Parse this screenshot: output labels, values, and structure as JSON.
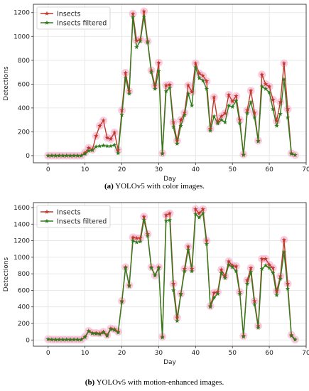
{
  "colors": {
    "insects": "#c0392b",
    "filtered": "#2e7d1a",
    "halo": "#f4a6c6"
  },
  "chart_data": [
    {
      "type": "line",
      "caption_tag": "(a)",
      "caption_text": " YOLOv5 with color images.",
      "xlabel": "Day",
      "ylabel": "Detections",
      "xlim": [
        -4,
        70
      ],
      "ylim": [
        -60,
        1270
      ],
      "xticks": [
        0,
        10,
        20,
        30,
        40,
        50,
        60,
        70
      ],
      "yticks": [
        0,
        200,
        400,
        600,
        800,
        1000,
        1200
      ],
      "legend_position": "top-left",
      "grid": true,
      "x": [
        0,
        1,
        2,
        3,
        4,
        5,
        6,
        7,
        8,
        9,
        10,
        11,
        12,
        13,
        14,
        15,
        16,
        17,
        18,
        19,
        20,
        21,
        22,
        23,
        24,
        25,
        26,
        27,
        28,
        29,
        30,
        31,
        32,
        33,
        34,
        35,
        36,
        37,
        38,
        39,
        40,
        41,
        42,
        43,
        44,
        45,
        46,
        47,
        48,
        49,
        50,
        51,
        52,
        53,
        54,
        55,
        56,
        57,
        58,
        59,
        60,
        61,
        62,
        63,
        64,
        65,
        66,
        67
      ],
      "series": [
        {
          "name": "Insects",
          "values": [
            0,
            0,
            0,
            0,
            0,
            0,
            0,
            0,
            0,
            0,
            25,
            65,
            50,
            165,
            250,
            295,
            150,
            140,
            195,
            45,
            380,
            695,
            540,
            1190,
            965,
            975,
            1210,
            960,
            715,
            585,
            780,
            20,
            590,
            595,
            280,
            125,
            300,
            360,
            590,
            535,
            775,
            690,
            670,
            625,
            225,
            490,
            285,
            330,
            355,
            510,
            455,
            500,
            300,
            10,
            380,
            545,
            360,
            125,
            680,
            600,
            580,
            470,
            290,
            450,
            775,
            390,
            20,
            5
          ]
        },
        {
          "name": "Insects filtered",
          "values": [
            0,
            0,
            0,
            0,
            0,
            0,
            0,
            0,
            0,
            0,
            15,
            40,
            45,
            75,
            80,
            85,
            80,
            80,
            90,
            20,
            340,
            650,
            520,
            1160,
            910,
            960,
            1165,
            950,
            700,
            560,
            710,
            15,
            540,
            570,
            240,
            100,
            250,
            340,
            520,
            420,
            740,
            650,
            630,
            560,
            210,
            330,
            270,
            300,
            280,
            420,
            410,
            460,
            270,
            5,
            355,
            450,
            320,
            120,
            580,
            560,
            530,
            390,
            250,
            350,
            640,
            320,
            15,
            5
          ]
        }
      ]
    },
    {
      "type": "line",
      "caption_tag": "(b)",
      "caption_text": " YOLOv5 with motion-enhanced images.",
      "xlabel": "Day",
      "ylabel": "Detections",
      "xlim": [
        -4,
        70
      ],
      "ylim": [
        -75,
        1660
      ],
      "xticks": [
        0,
        10,
        20,
        30,
        40,
        50,
        60,
        70
      ],
      "yticks": [
        0,
        200,
        400,
        600,
        800,
        1000,
        1200,
        1400,
        1600
      ],
      "legend_position": "top-left",
      "grid": true,
      "x": [
        0,
        1,
        2,
        3,
        4,
        5,
        6,
        7,
        8,
        9,
        10,
        11,
        12,
        13,
        14,
        15,
        16,
        17,
        18,
        19,
        20,
        21,
        22,
        23,
        24,
        25,
        26,
        27,
        28,
        29,
        30,
        31,
        32,
        33,
        34,
        35,
        36,
        37,
        38,
        39,
        40,
        41,
        42,
        43,
        44,
        45,
        46,
        47,
        48,
        49,
        50,
        51,
        52,
        53,
        54,
        55,
        56,
        57,
        58,
        59,
        60,
        61,
        62,
        63,
        64,
        65,
        66,
        67
      ],
      "series": [
        {
          "name": "Insects",
          "values": [
            10,
            5,
            5,
            5,
            5,
            5,
            5,
            5,
            5,
            5,
            40,
            110,
            85,
            85,
            80,
            100,
            60,
            140,
            130,
            100,
            470,
            880,
            660,
            1240,
            1230,
            1230,
            1490,
            1280,
            880,
            780,
            880,
            40,
            1510,
            1530,
            680,
            270,
            560,
            860,
            1130,
            860,
            1580,
            1530,
            1580,
            1200,
            410,
            570,
            580,
            850,
            770,
            950,
            900,
            890,
            580,
            50,
            720,
            870,
            470,
            170,
            980,
            980,
            910,
            870,
            590,
            770,
            1210,
            680,
            60,
            5
          ]
        },
        {
          "name": "Insects filtered",
          "values": [
            10,
            5,
            5,
            5,
            5,
            5,
            5,
            5,
            5,
            5,
            35,
            105,
            80,
            75,
            70,
            90,
            50,
            130,
            120,
            90,
            460,
            870,
            650,
            1200,
            1180,
            1190,
            1450,
            1260,
            870,
            780,
            870,
            30,
            1440,
            1450,
            600,
            230,
            550,
            830,
            1090,
            830,
            1520,
            1480,
            1530,
            1160,
            400,
            510,
            560,
            810,
            750,
            910,
            880,
            830,
            560,
            40,
            680,
            820,
            430,
            150,
            860,
            900,
            870,
            810,
            540,
            740,
            1060,
            620,
            50,
            5
          ]
        }
      ]
    }
  ]
}
